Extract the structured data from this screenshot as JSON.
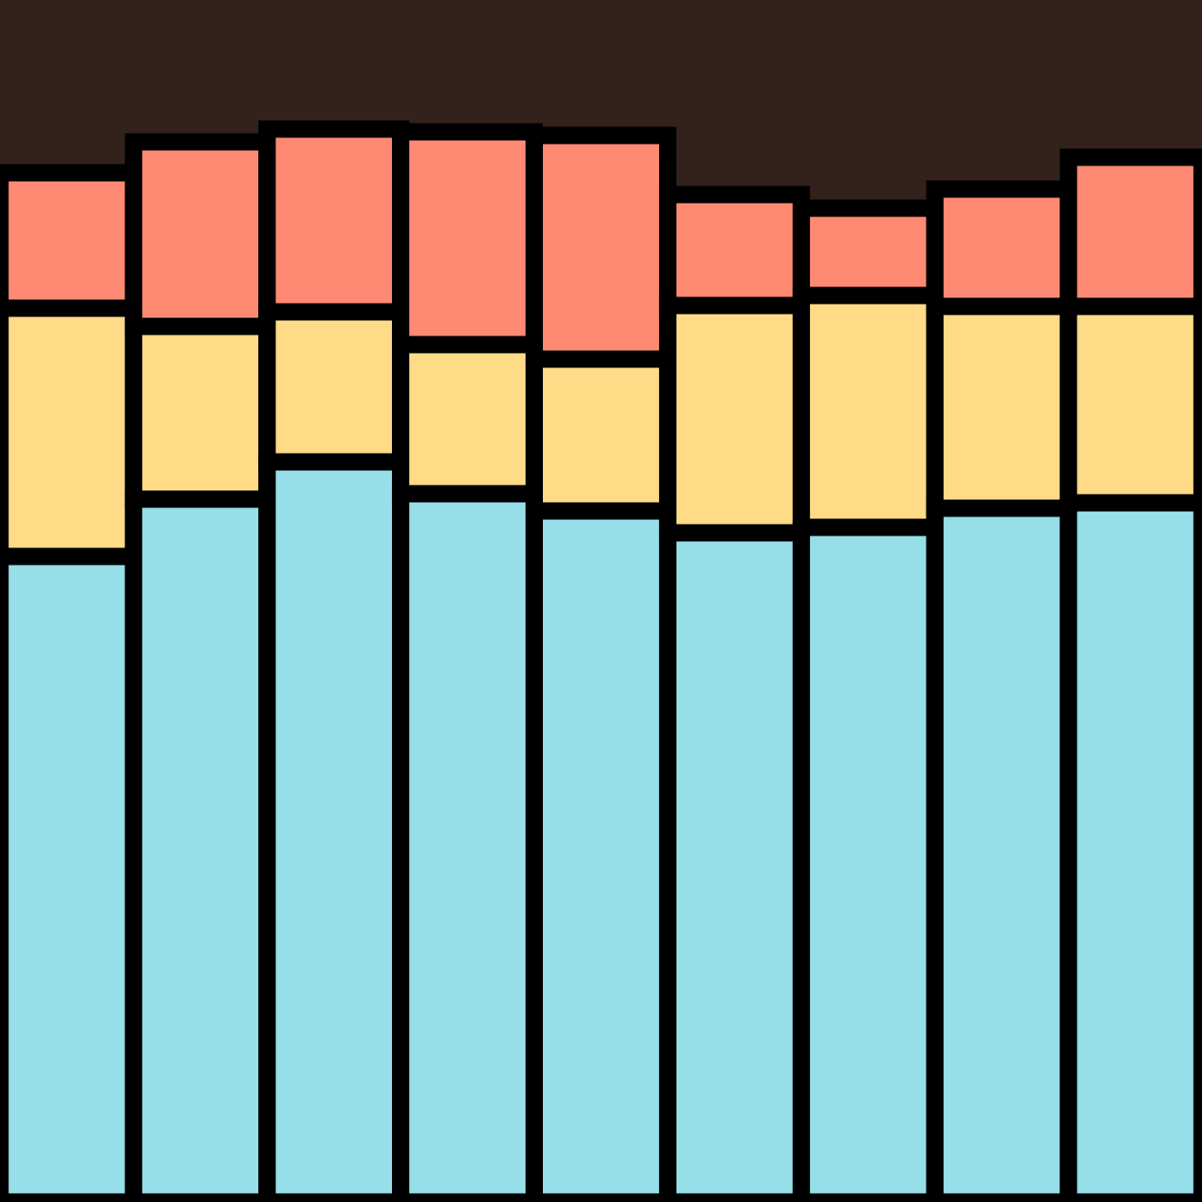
{
  "chart_data": {
    "type": "bar",
    "stacked": true,
    "categories": [
      null,
      null,
      null,
      null,
      null,
      null,
      null,
      null,
      null
    ],
    "series": [
      {
        "color": "#96dee8",
        "values": [
          71.0,
          77.3,
          81.4,
          77.9,
          76.0,
          73.6,
          74.2,
          76.3,
          76.9
        ]
      },
      {
        "color": "#ffdb87",
        "values": [
          27.3,
          19.0,
          16.5,
          16.4,
          16.7,
          25.0,
          25.5,
          22.2,
          21.6
        ]
      },
      {
        "color": "#ff8a73",
        "values": [
          14.9,
          20.3,
          20.1,
          23.4,
          24.6,
          12.2,
          9.6,
          12.9,
          16.4
        ]
      }
    ],
    "ylim": [
      0,
      132.2
    ],
    "background": "#33211b",
    "edge_color": "#000000"
  }
}
